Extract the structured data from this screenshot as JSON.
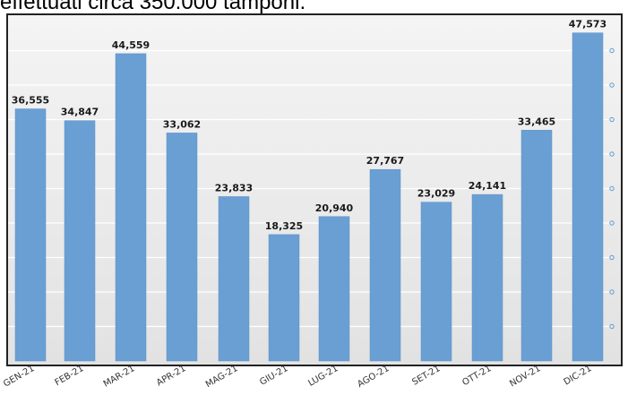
{
  "heading_text": "effettuati circa 350.000 tamponi.",
  "colors": {
    "bar": "#6a9fd4",
    "bar_edge": "#5b8fc7",
    "panel_top": "#f4f4f4",
    "panel_bottom": "#e2e2e2",
    "grid": "#ffffff",
    "frame": "#222222",
    "marker": "#5b9bd5"
  },
  "chart_data": {
    "type": "bar",
    "title": "",
    "xlabel": "",
    "ylabel": "",
    "categories": [
      "GEN-21",
      "FEB-21",
      "MAR-21",
      "APR-21",
      "MAG-21",
      "GIU-21",
      "LUG-21",
      "AGO-21",
      "SET-21",
      "OTT-21",
      "NOV-21",
      "DIC-21"
    ],
    "values": [
      36555,
      34847,
      44559,
      33062,
      23833,
      18325,
      20940,
      27767,
      23029,
      24141,
      33465,
      47573
    ],
    "value_labels": [
      "36,555",
      "34,847",
      "44,559",
      "33,062",
      "23,833",
      "18,325",
      "20,940",
      "27,767",
      "23,029",
      "24,141",
      "33,465",
      "47,573"
    ],
    "ylim": [
      0,
      50000
    ],
    "grid": true,
    "legend": "none"
  }
}
